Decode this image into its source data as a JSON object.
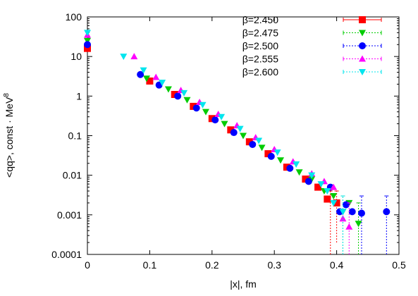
{
  "chart_data": {
    "type": "scatter",
    "title": "",
    "xlabel": "|x|, fm",
    "ylabel_prefix": "<qq>, const · MeV",
    "ylabel_exponent": "8",
    "xlim": [
      0,
      0.5
    ],
    "ylim": [
      0.0001,
      100
    ],
    "yscale": "log",
    "grid": false,
    "legend_position": "top-right",
    "x_ticks": [
      "0",
      "0.1",
      "0.2",
      "0.3",
      "0.4",
      "0.5"
    ],
    "y_ticks": [
      "0.0001",
      "0.001",
      "0.01",
      "0.1",
      "1",
      "10",
      "100"
    ],
    "series": [
      {
        "name": "β=2.450",
        "color": "#ff0000",
        "marker": "square",
        "points": [
          [
            0.0,
            16
          ],
          [
            0.1,
            2.4
          ],
          [
            0.14,
            1.1
          ],
          [
            0.17,
            0.55
          ],
          [
            0.2,
            0.27
          ],
          [
            0.23,
            0.14
          ],
          [
            0.26,
            0.07
          ],
          [
            0.29,
            0.035
          ],
          [
            0.32,
            0.016
          ],
          [
            0.35,
            0.008
          ],
          [
            0.37,
            0.005
          ],
          [
            0.385,
            0.0025
          ],
          [
            0.4,
            0.002
          ]
        ],
        "error_points": [
          [
            0.39,
            0.0022,
            5e-05,
            0.004
          ],
          [
            0.4,
            0.002,
            0.0002,
            0.004
          ]
        ]
      },
      {
        "name": "β=2.475",
        "color": "#00cc00",
        "marker": "triangle-down",
        "points": [
          [
            0.0,
            25
          ],
          [
            0.095,
            2.8
          ],
          [
            0.13,
            1.5
          ],
          [
            0.16,
            0.8
          ],
          [
            0.19,
            0.4
          ],
          [
            0.22,
            0.2
          ],
          [
            0.25,
            0.1
          ],
          [
            0.28,
            0.05
          ],
          [
            0.31,
            0.024
          ],
          [
            0.34,
            0.012
          ],
          [
            0.36,
            0.008
          ],
          [
            0.38,
            0.004
          ],
          [
            0.395,
            0.003
          ],
          [
            0.41,
            0.0012
          ],
          [
            0.42,
            0.002
          ],
          [
            0.435,
            0.0006
          ]
        ],
        "error_points": [
          [
            0.41,
            0.0012,
            5e-05,
            0.003
          ],
          [
            0.435,
            0.0006,
            0.0001,
            0.002
          ]
        ]
      },
      {
        "name": "β=2.500",
        "color": "#0000ff",
        "marker": "circle",
        "points": [
          [
            0.0,
            20
          ],
          [
            0.085,
            3.5
          ],
          [
            0.115,
            1.9
          ],
          [
            0.145,
            1.0
          ],
          [
            0.175,
            0.5
          ],
          [
            0.205,
            0.25
          ],
          [
            0.235,
            0.12
          ],
          [
            0.265,
            0.06
          ],
          [
            0.295,
            0.03
          ],
          [
            0.325,
            0.015
          ],
          [
            0.355,
            0.007
          ],
          [
            0.39,
            0.005
          ],
          [
            0.405,
            0.0012
          ],
          [
            0.415,
            0.0018
          ],
          [
            0.425,
            0.0012
          ],
          [
            0.44,
            0.0011
          ],
          [
            0.48,
            0.0012
          ]
        ],
        "error_points": [
          [
            0.48,
            0.0012,
            0.0001,
            0.003
          ],
          [
            0.44,
            0.0011,
            0.0001,
            0.003
          ]
        ]
      },
      {
        "name": "β=2.555",
        "color": "#ff00ff",
        "marker": "triangle-up",
        "points": [
          [
            0.0,
            35
          ],
          [
            0.075,
            10
          ],
          [
            0.11,
            3.0
          ],
          [
            0.15,
            1.4
          ],
          [
            0.18,
            0.7
          ],
          [
            0.21,
            0.35
          ],
          [
            0.24,
            0.18
          ],
          [
            0.27,
            0.09
          ],
          [
            0.3,
            0.045
          ],
          [
            0.33,
            0.022
          ],
          [
            0.36,
            0.011
          ],
          [
            0.38,
            0.007
          ],
          [
            0.395,
            0.005
          ],
          [
            0.41,
            0.0008
          ],
          [
            0.42,
            0.0005
          ]
        ],
        "error_points": [
          [
            0.42,
            0.0005,
            0.0001,
            0.002
          ]
        ]
      },
      {
        "name": "β=2.600",
        "color": "#00e5ee",
        "marker": "triangle-down",
        "points": [
          [
            0.0,
            40
          ],
          [
            0.058,
            10
          ],
          [
            0.09,
            4.5
          ],
          [
            0.12,
            2.2
          ],
          [
            0.155,
            1.2
          ],
          [
            0.185,
            0.6
          ],
          [
            0.215,
            0.3
          ],
          [
            0.245,
            0.15
          ],
          [
            0.275,
            0.075
          ],
          [
            0.305,
            0.038
          ],
          [
            0.335,
            0.019
          ],
          [
            0.36,
            0.01
          ],
          [
            0.375,
            0.006
          ],
          [
            0.385,
            0.004
          ],
          [
            0.395,
            0.002
          ],
          [
            0.41,
            0.0012
          ]
        ],
        "error_points": [
          [
            0.41,
            0.0012,
            0.0001,
            0.003
          ]
        ]
      }
    ]
  }
}
